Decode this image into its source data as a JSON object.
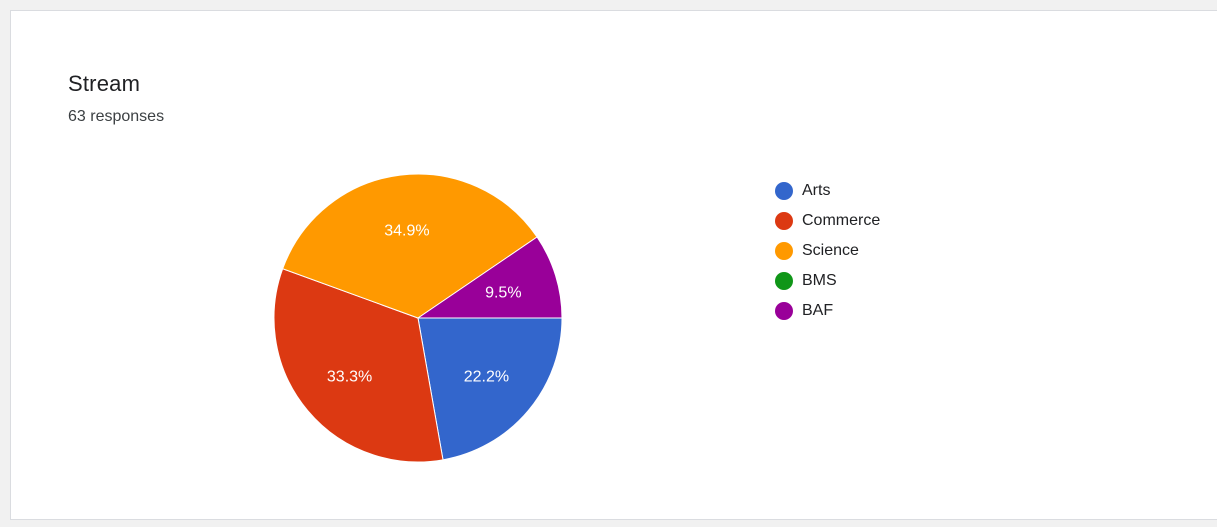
{
  "card": {
    "title": "Stream",
    "subtitle": "63 responses"
  },
  "chart_data": {
    "type": "pie",
    "title": "Stream",
    "subtitle": "63 responses",
    "legend_position": "right",
    "slices": [
      {
        "label": "Arts",
        "value": 22.2,
        "display": "22.2%",
        "color": "#3366cc"
      },
      {
        "label": "Commerce",
        "value": 33.3,
        "display": "33.3%",
        "color": "#dc3912"
      },
      {
        "label": "Science",
        "value": 34.9,
        "display": "34.9%",
        "color": "#ff9900"
      },
      {
        "label": "BMS",
        "value": 0,
        "display": "",
        "color": "#109618"
      },
      {
        "label": "BAF",
        "value": 9.5,
        "display": "9.5%",
        "color": "#990099"
      }
    ]
  }
}
